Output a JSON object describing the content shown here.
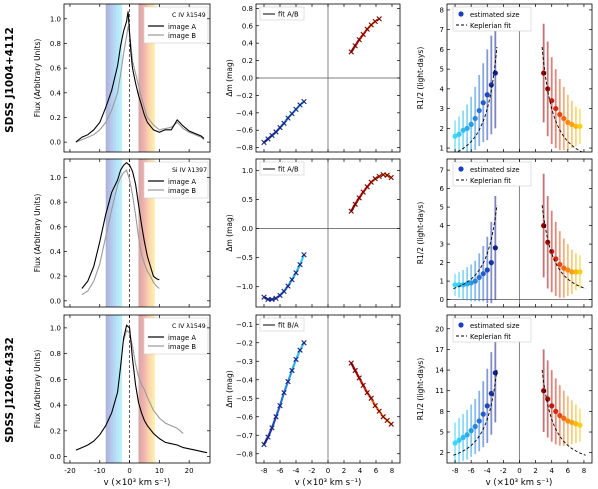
{
  "figure": {
    "row_labels": [
      "SDSS J1004+4112",
      "SDSS J1206+4332"
    ],
    "x_axis_label": "v (×10³ km s⁻¹)"
  },
  "chart_data": [
    {
      "type": "line",
      "panel": "row1-spectrum",
      "legend_title": "C IV λ1549",
      "ylabel": "Flux (Arbitrary Units)",
      "xlim": [
        -22,
        27
      ],
      "ylim": [
        -0.08,
        1.12
      ],
      "xticks": [
        -20,
        -10,
        0,
        10,
        20
      ],
      "yticks": [
        0.0,
        0.2,
        0.4,
        0.6,
        0.8,
        1.0
      ],
      "show_x_ticklabels": false,
      "series": [
        {
          "name": "image A",
          "color": "#000000",
          "x": [
            -18,
            -16,
            -14,
            -12,
            -10,
            -8,
            -6,
            -4,
            -3,
            -2,
            -1,
            -0.5,
            0,
            0.5,
            1,
            2,
            3,
            4,
            5,
            6,
            8,
            10,
            12,
            14,
            16,
            18,
            20,
            22,
            24,
            25
          ],
          "y": [
            0.0,
            0.04,
            0.06,
            0.1,
            0.16,
            0.28,
            0.42,
            0.62,
            0.78,
            0.9,
            0.98,
            1.06,
            0.88,
            0.72,
            0.6,
            0.48,
            0.38,
            0.3,
            0.22,
            0.16,
            0.1,
            0.08,
            0.1,
            0.1,
            0.18,
            0.13,
            0.09,
            0.07,
            0.05,
            0.03
          ]
        },
        {
          "name": "image B",
          "color": "#9a9a9a",
          "x": [
            -18,
            -16,
            -14,
            -12,
            -10,
            -8,
            -6,
            -4,
            -3,
            -2,
            -1,
            -0.5,
            0,
            0.5,
            1,
            2,
            3,
            4,
            5,
            6,
            8,
            10,
            12,
            14,
            16,
            18,
            20,
            22,
            24,
            25
          ],
          "y": [
            0.0,
            0.02,
            0.04,
            0.06,
            0.1,
            0.16,
            0.26,
            0.4,
            0.55,
            0.72,
            0.86,
            0.94,
            0.88,
            0.78,
            0.66,
            0.56,
            0.46,
            0.36,
            0.28,
            0.2,
            0.14,
            0.1,
            0.11,
            0.12,
            0.16,
            0.11,
            0.08,
            0.06,
            0.04,
            0.02
          ]
        }
      ]
    },
    {
      "type": "line",
      "panel": "row2-spectrum",
      "legend_title": "Si IV λ1397",
      "ylabel": "Flux (Arbitrary Units)",
      "xlim": [
        -22,
        27
      ],
      "ylim": [
        -0.05,
        1.15
      ],
      "xticks": [
        -20,
        -10,
        0,
        10,
        20
      ],
      "yticks": [
        0.0,
        0.2,
        0.4,
        0.6,
        0.8,
        1.0
      ],
      "show_x_ticklabels": false,
      "series": [
        {
          "name": "image A",
          "color": "#000000",
          "x": [
            -16,
            -14,
            -12,
            -10,
            -8,
            -6,
            -4,
            -3,
            -2,
            -1,
            0,
            1,
            2,
            3,
            4,
            5,
            6,
            7,
            8,
            9,
            10
          ],
          "y": [
            0.1,
            0.16,
            0.28,
            0.48,
            0.7,
            0.88,
            0.98,
            1.06,
            1.1,
            1.12,
            1.1,
            1.05,
            0.95,
            0.78,
            0.62,
            0.48,
            0.36,
            0.28,
            0.2,
            0.18,
            0.17
          ]
        },
        {
          "name": "image B",
          "color": "#9a9a9a",
          "x": [
            -16,
            -14,
            -12,
            -10,
            -8,
            -6,
            -4,
            -3,
            -2,
            -1,
            0,
            1,
            2,
            3,
            4,
            5,
            6,
            7,
            8,
            9,
            10
          ],
          "y": [
            0.05,
            0.08,
            0.16,
            0.3,
            0.52,
            0.74,
            0.94,
            1.0,
            1.04,
            1.06,
            0.98,
            0.86,
            0.7,
            0.52,
            0.38,
            0.3,
            0.24,
            0.2,
            0.15,
            0.12,
            0.1
          ]
        }
      ]
    },
    {
      "type": "line",
      "panel": "row3-spectrum",
      "legend_title": "C IV λ1549",
      "ylabel": "Flux (Arbitrary Units)",
      "xlim": [
        -22,
        27
      ],
      "ylim": [
        -0.05,
        1.1
      ],
      "xticks": [
        -20,
        -10,
        0,
        10,
        20
      ],
      "yticks": [
        0.0,
        0.2,
        0.4,
        0.6,
        0.8,
        1.0
      ],
      "show_x_ticklabels": true,
      "series": [
        {
          "name": "image A",
          "color": "#000000",
          "x": [
            -18,
            -16,
            -14,
            -12,
            -10,
            -8,
            -6,
            -4,
            -3,
            -2,
            -1,
            0,
            1,
            2,
            3,
            4,
            5,
            6,
            8,
            10,
            12,
            14,
            16,
            18,
            20,
            22,
            24,
            26
          ],
          "y": [
            0.05,
            0.07,
            0.09,
            0.12,
            0.17,
            0.24,
            0.34,
            0.5,
            0.7,
            0.92,
            1.02,
            1.0,
            0.76,
            0.56,
            0.42,
            0.34,
            0.28,
            0.24,
            0.18,
            0.14,
            0.11,
            0.1,
            0.09,
            0.07,
            0.06,
            0.05,
            0.04,
            0.03
          ]
        },
        {
          "name": "image B",
          "color": "#9a9a9a",
          "x": [
            -2,
            -1,
            0,
            1,
            2,
            3,
            4,
            5,
            6,
            8,
            10,
            12,
            14,
            16,
            18
          ],
          "y": [
            0.9,
            0.98,
            0.96,
            0.86,
            0.72,
            0.62,
            0.56,
            0.52,
            0.46,
            0.36,
            0.3,
            0.26,
            0.24,
            0.22,
            0.18
          ]
        }
      ]
    },
    {
      "type": "scatter",
      "panel": "row1-magnitude",
      "legend_entries": [
        "fit A/B"
      ],
      "ylabel": "Δm (mag)",
      "xlim": [
        -9,
        9
      ],
      "ylim": [
        -0.85,
        0.85
      ],
      "xticks": [
        -8,
        -6,
        -4,
        -2,
        0,
        2,
        4,
        6,
        8
      ],
      "yticks": [
        -0.8,
        -0.6,
        -0.4,
        -0.2,
        0.0,
        0.2,
        0.4,
        0.6,
        0.8
      ],
      "show_x_ticklabels": false,
      "blue_side": {
        "x": [
          -8,
          -7.5,
          -7,
          -6.5,
          -6,
          -5.5,
          -5,
          -4.5,
          -4,
          -3.5,
          -3
        ],
        "y": [
          -0.74,
          -0.7,
          -0.66,
          -0.62,
          -0.57,
          -0.52,
          -0.46,
          -0.41,
          -0.36,
          -0.31,
          -0.27
        ]
      },
      "red_side": {
        "x": [
          2.9,
          3.4,
          3.9,
          4.4,
          4.9,
          5.4,
          5.9,
          6.4
        ],
        "y": [
          0.3,
          0.37,
          0.44,
          0.5,
          0.56,
          0.61,
          0.65,
          0.68
        ]
      }
    },
    {
      "type": "scatter",
      "panel": "row2-magnitude",
      "legend_entries": [
        "fit A/B"
      ],
      "ylabel": "Δm (mag)",
      "xlim": [
        -9,
        9
      ],
      "ylim": [
        -1.35,
        1.2
      ],
      "xticks": [
        -8,
        -6,
        -4,
        -2,
        0,
        2,
        4,
        6,
        8
      ],
      "yticks": [
        -1.0,
        -0.5,
        0.0,
        0.5,
        1.0
      ],
      "show_x_ticklabels": false,
      "blue_side": {
        "x": [
          -8,
          -7.5,
          -7,
          -6.5,
          -6,
          -5.5,
          -5,
          -4.5,
          -4,
          -3.5,
          -3
        ],
        "y": [
          -1.18,
          -1.22,
          -1.22,
          -1.2,
          -1.15,
          -1.08,
          -0.99,
          -0.88,
          -0.76,
          -0.62,
          -0.45
        ]
      },
      "red_side": {
        "x": [
          2.9,
          3.4,
          3.9,
          4.4,
          4.9,
          5.4,
          5.9,
          6.4,
          6.9,
          7.4,
          7.9
        ],
        "y": [
          0.3,
          0.42,
          0.53,
          0.63,
          0.72,
          0.8,
          0.86,
          0.9,
          0.93,
          0.92,
          0.88
        ]
      }
    },
    {
      "type": "scatter",
      "panel": "row3-magnitude",
      "legend_entries": [
        "fit B/A"
      ],
      "ylabel": "Δm (mag)",
      "xlim": [
        -9,
        9
      ],
      "ylim": [
        -0.85,
        -0.05
      ],
      "xticks": [
        -8,
        -6,
        -4,
        -2,
        0,
        2,
        4,
        6,
        8
      ],
      "yticks": [
        -0.8,
        -0.7,
        -0.6,
        -0.5,
        -0.4,
        -0.3,
        -0.2,
        -0.1
      ],
      "show_x_ticklabels": true,
      "blue_side": {
        "x": [
          -8,
          -7.5,
          -7,
          -6.5,
          -6,
          -5.5,
          -5,
          -4.5,
          -4,
          -3.5,
          -3
        ],
        "y": [
          -0.75,
          -0.71,
          -0.66,
          -0.6,
          -0.54,
          -0.47,
          -0.41,
          -0.35,
          -0.29,
          -0.24,
          -0.2
        ]
      },
      "red_side": {
        "x": [
          2.9,
          3.4,
          3.9,
          4.4,
          4.9,
          5.4,
          5.9,
          6.4,
          6.9,
          7.4,
          7.9
        ],
        "y": [
          -0.31,
          -0.35,
          -0.39,
          -0.43,
          -0.47,
          -0.5,
          -0.54,
          -0.57,
          -0.6,
          -0.62,
          -0.64
        ]
      }
    },
    {
      "type": "scatter",
      "panel": "row1-size",
      "legend_entries": [
        "estimated size",
        "Keplerian fit"
      ],
      "ylabel": "R1/2 (light-days)",
      "xlim": [
        -9,
        9
      ],
      "ylim": [
        0.8,
        8.3
      ],
      "xticks": [
        -8,
        -6,
        -4,
        -2,
        0,
        2,
        4,
        6,
        8
      ],
      "yticks": [
        1.0,
        2.0,
        3.0,
        4.0,
        5.0,
        6.0,
        7.0,
        8.0
      ],
      "show_x_ticklabels": false,
      "blue_side": {
        "x": [
          -8,
          -7.5,
          -7,
          -6.5,
          -6,
          -5.5,
          -5,
          -4.5,
          -4,
          -3.5,
          -3
        ],
        "y": [
          1.6,
          1.7,
          1.9,
          2.0,
          2.2,
          2.5,
          2.9,
          3.3,
          3.7,
          4.2,
          4.8
        ],
        "err": [
          0.8,
          0.9,
          1.0,
          1.2,
          1.4,
          1.6,
          1.8,
          2.0,
          2.3,
          2.5,
          2.8
        ]
      },
      "red_side": {
        "x": [
          3,
          3.5,
          4,
          4.5,
          5,
          5.5,
          6,
          6.5,
          7,
          7.5
        ],
        "y": [
          4.8,
          4.0,
          3.4,
          3.0,
          2.7,
          2.5,
          2.3,
          2.2,
          2.1,
          2.1
        ],
        "err": [
          2.5,
          2.4,
          2.2,
          2.0,
          1.8,
          1.6,
          1.4,
          1.2,
          1.0,
          0.9
        ]
      },
      "fit_k": 48
    },
    {
      "type": "scatter",
      "panel": "row2-size",
      "legend_entries": [
        "estimated size",
        "Keplerian fit"
      ],
      "ylabel": "R1/2 (light-days)",
      "xlim": [
        -9,
        9
      ],
      "ylim": [
        -0.4,
        7.6
      ],
      "xticks": [
        -8,
        -6,
        -4,
        -2,
        0,
        2,
        4,
        6,
        8
      ],
      "yticks": [
        0.0,
        1.0,
        2.0,
        3.0,
        4.0,
        5.0,
        6.0,
        7.0
      ],
      "show_x_ticklabels": false,
      "blue_side": {
        "x": [
          -8,
          -7.5,
          -7,
          -6.5,
          -6,
          -5.5,
          -5,
          -4.5,
          -4,
          -3.5,
          -3
        ],
        "y": [
          0.8,
          0.8,
          0.8,
          0.85,
          0.9,
          1.0,
          1.2,
          1.4,
          1.6,
          2.0,
          2.8
        ],
        "err": [
          0.6,
          0.7,
          0.8,
          0.9,
          1.0,
          1.1,
          1.3,
          1.5,
          1.8,
          2.2,
          2.8
        ]
      },
      "red_side": {
        "x": [
          3,
          3.5,
          4,
          4.5,
          5,
          5.5,
          6,
          6.5,
          7,
          7.5
        ],
        "y": [
          4.0,
          3.1,
          2.6,
          2.2,
          1.9,
          1.7,
          1.6,
          1.5,
          1.5,
          1.5
        ],
        "err": [
          2.8,
          2.5,
          2.2,
          2.0,
          1.8,
          1.6,
          1.4,
          1.2,
          1.0,
          0.9
        ]
      },
      "fit_k": 40
    },
    {
      "type": "scatter",
      "panel": "row3-size",
      "legend_entries": [
        "estimated size",
        "Keplerian fit"
      ],
      "ylabel": "R1/2 (light-days)",
      "xlim": [
        -9,
        9
      ],
      "ylim": [
        0.5,
        22
      ],
      "xticks": [
        -8,
        -6,
        -4,
        -2,
        0,
        2,
        4,
        6,
        8
      ],
      "yticks": [
        2,
        5,
        8,
        11,
        14,
        17,
        20
      ],
      "show_x_ticklabels": true,
      "blue_side": {
        "x": [
          -8,
          -7.5,
          -7,
          -6.5,
          -6,
          -5.5,
          -5,
          -4.5,
          -4,
          -3.5,
          -3
        ],
        "y": [
          3.4,
          3.8,
          4.2,
          4.6,
          5.2,
          5.8,
          6.6,
          7.6,
          8.8,
          10.6,
          13.6
        ],
        "err": [
          3.0,
          3.2,
          3.4,
          3.6,
          3.8,
          4.0,
          4.4,
          4.8,
          5.4,
          6.0,
          7.2
        ]
      },
      "red_side": {
        "x": [
          3,
          3.5,
          4,
          4.5,
          5,
          5.5,
          6,
          6.5,
          7,
          7.5
        ],
        "y": [
          11.0,
          9.8,
          8.8,
          8.0,
          7.4,
          7.0,
          6.6,
          6.4,
          6.2,
          6.0
        ],
        "err": [
          6.0,
          5.6,
          5.2,
          4.8,
          4.4,
          4.0,
          3.6,
          3.2,
          2.8,
          2.4
        ]
      },
      "fit_k": 110
    }
  ]
}
